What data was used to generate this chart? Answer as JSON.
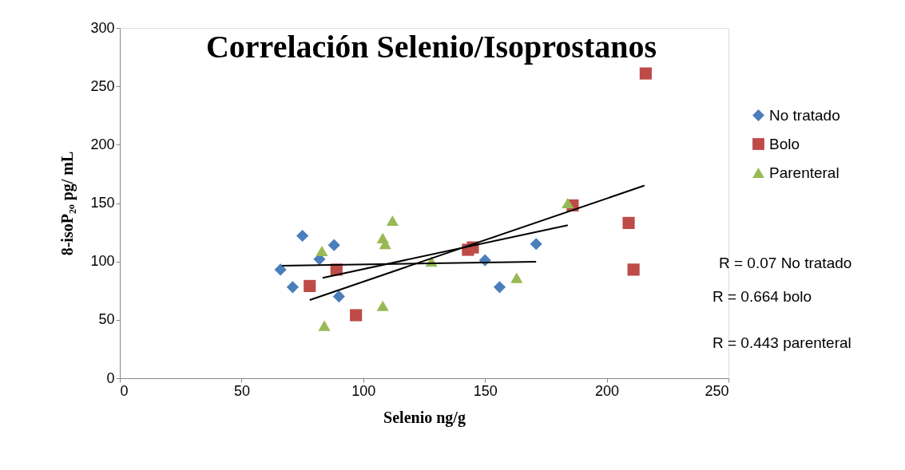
{
  "chart_data": {
    "type": "scatter",
    "title": "Correlación Selenio/Isoprostanos",
    "xlabel": "Selenio ng/g",
    "ylabel": "8-isoP₂ₒ pg/ mL",
    "xlim": [
      0,
      250
    ],
    "xticks": [
      0,
      50,
      100,
      150,
      200,
      250
    ],
    "ylim": [
      0,
      300
    ],
    "yticks": [
      0,
      50,
      100,
      150,
      200,
      250,
      300
    ],
    "grid": false,
    "legend": "right",
    "series": [
      {
        "name": "No tratado",
        "color": "#4a7ebb",
        "marker": "diamond",
        "x": [
          66,
          71,
          75,
          82,
          88,
          90,
          150,
          156,
          171
        ],
        "values": [
          93,
          78,
          122,
          102,
          114,
          70,
          101,
          78,
          115
        ]
      },
      {
        "name": "Bolo",
        "color": "#be4b48",
        "marker": "square",
        "x": [
          78,
          89,
          97,
          143,
          145,
          186,
          209,
          211,
          216
        ],
        "values": [
          79,
          93,
          54,
          110,
          112,
          148,
          133,
          93,
          261
        ]
      },
      {
        "name": "Parenteral",
        "color": "#98b954",
        "marker": "triangle",
        "x": [
          83,
          84,
          108,
          108,
          109,
          112,
          128,
          163,
          184
        ],
        "values": [
          109,
          45,
          62,
          120,
          115,
          135,
          100,
          86,
          150
        ]
      },
      {
        "type": "line",
        "color": "#000000",
        "x": [
          66.6,
          171
        ],
        "values": [
          96.4,
          99.8
        ]
      },
      {
        "type": "line",
        "color": "#000000",
        "x": [
          83.3,
          184
        ],
        "values": [
          86,
          131
        ]
      },
      {
        "type": "line",
        "color": "#000000",
        "x": [
          78,
          215.5
        ],
        "values": [
          67,
          165
        ]
      }
    ],
    "annotations": [
      "R = 0.07 No tratado",
      "R = 0.664 bolo",
      "R = 0.443 parenteral"
    ]
  }
}
